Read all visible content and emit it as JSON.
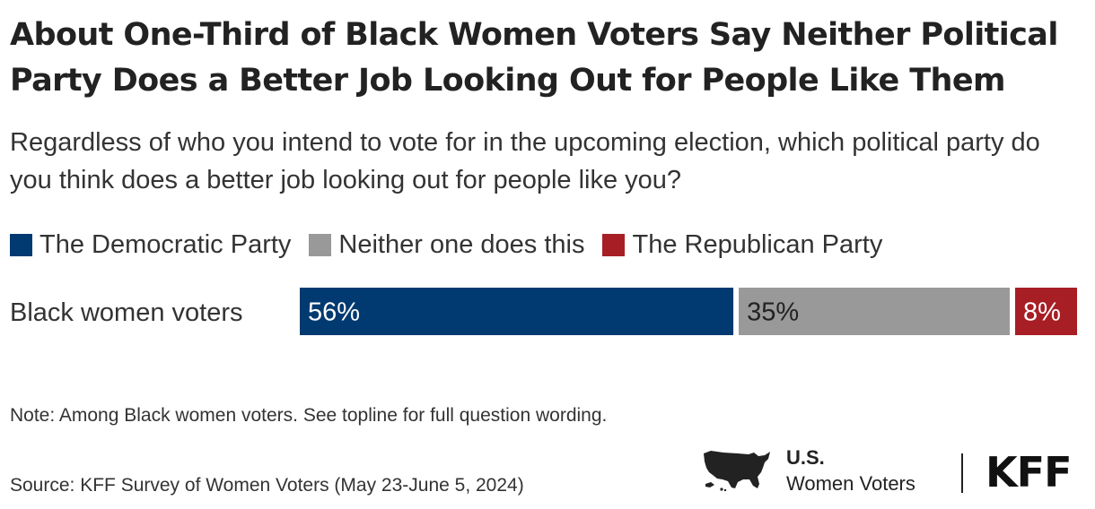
{
  "title": "About One-Third of Black Women Voters Say Neither Political Party Does a Better Job Looking Out for People Like Them",
  "subtitle": "Regardless of who you intend to vote for in the upcoming election, which political party do you think does a better job looking out for people like you?",
  "colors": {
    "democratic": "#003a70",
    "neither": "#999999",
    "republican": "#a81e25"
  },
  "chart_data": {
    "type": "bar",
    "orientation": "horizontal",
    "stacked": true,
    "categories": [
      "Black women voters"
    ],
    "series": [
      {
        "name": "The Democratic Party",
        "values": [
          56
        ],
        "labels": [
          "56%"
        ],
        "color": "#003a70",
        "label_color": "#ffffff"
      },
      {
        "name": "Neither one does this",
        "values": [
          35
        ],
        "labels": [
          "35%"
        ],
        "color": "#999999",
        "label_color": "#222222"
      },
      {
        "name": "The Republican Party",
        "values": [
          8
        ],
        "labels": [
          "8%"
        ],
        "color": "#a81e25",
        "label_color": "#ffffff"
      }
    ],
    "legend_position": "top-left",
    "grid": false
  },
  "footer": {
    "note": "Note: Among Black women voters. See topline for full question wording.",
    "source": "Source: KFF Survey of Women Voters (May 23-June 5, 2024)",
    "brand_line1": "U.S.",
    "brand_line2": "Women Voters",
    "logo_text": "KFF"
  }
}
